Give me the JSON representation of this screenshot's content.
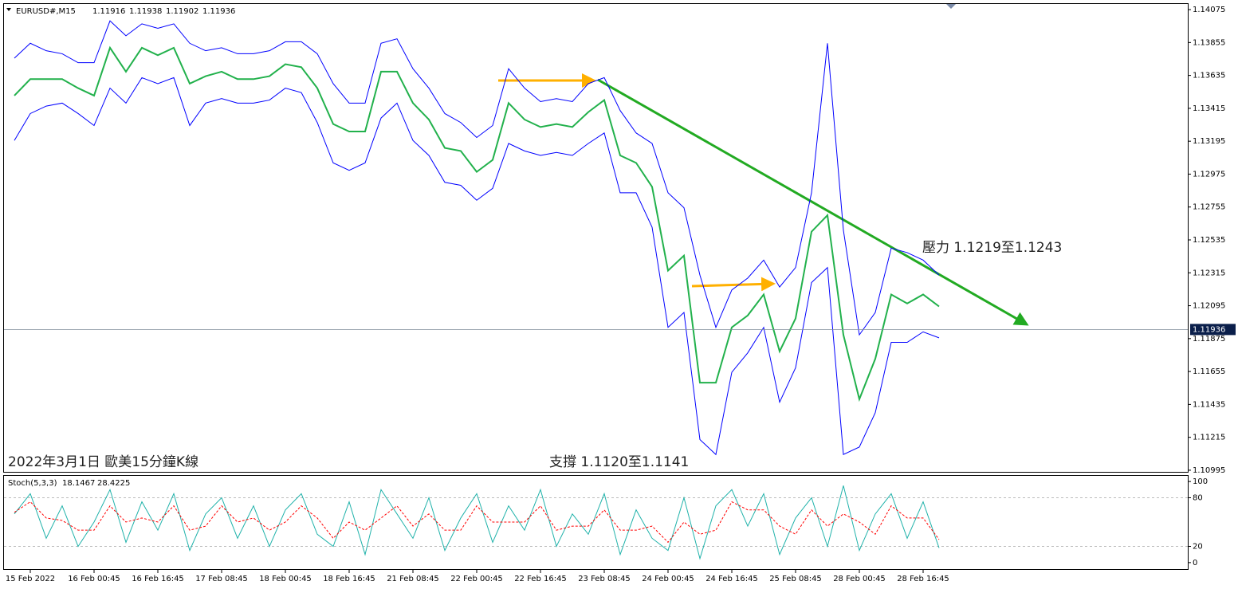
{
  "chart_data": [
    {
      "type": "line",
      "title": "EURUSD#,M15",
      "header_values": [
        1.11916,
        1.11938,
        1.11902,
        1.11936
      ],
      "ylim": [
        1.10984,
        1.14118
      ],
      "yticks": [
        1.14075,
        1.13855,
        1.13635,
        1.13415,
        1.13195,
        1.12975,
        1.12755,
        1.12535,
        1.12315,
        1.12095,
        1.11875,
        1.11655,
        1.11435,
        1.11215,
        1.10995
      ],
      "series": [
        {
          "color": "#22b14c",
          "values": [
            1.135,
            1.1361,
            1.1361,
            1.1361,
            1.1355,
            1.135,
            1.1382,
            1.1366,
            1.1382,
            1.1377,
            1.1382,
            1.1358,
            1.1363,
            1.1366,
            1.1361,
            1.1361,
            1.1363,
            1.1371,
            1.1369,
            1.1355,
            1.1331,
            1.1326,
            1.1326,
            1.1366,
            1.1366,
            1.1345,
            1.1334,
            1.1315,
            1.1313,
            1.1299,
            1.1307,
            1.1345,
            1.1334,
            1.1329,
            1.1331,
            1.1329,
            1.1339,
            1.1347,
            1.131,
            1.1305,
            1.1289,
            1.1233,
            1.1243,
            1.1158,
            1.1158,
            1.1195,
            1.1203,
            1.1217,
            1.1179,
            1.1201,
            1.1259,
            1.127,
            1.119,
            1.1147,
            1.1174,
            1.1217,
            1.1211,
            1.1217,
            1.1209
          ]
        },
        {
          "color": "#0000ff",
          "values": [
            1.1375,
            1.1385,
            1.138,
            1.1378,
            1.1372,
            1.1372,
            1.14,
            1.139,
            1.1398,
            1.1395,
            1.1398,
            1.1385,
            1.138,
            1.1382,
            1.1378,
            1.1378,
            1.138,
            1.1386,
            1.1386,
            1.1378,
            1.1358,
            1.1345,
            1.1345,
            1.1385,
            1.1388,
            1.1368,
            1.1355,
            1.1338,
            1.1332,
            1.1322,
            1.133,
            1.1368,
            1.1355,
            1.1346,
            1.1348,
            1.1346,
            1.1358,
            1.1362,
            1.134,
            1.1325,
            1.1318,
            1.1285,
            1.1275,
            1.123,
            1.1195,
            1.122,
            1.1228,
            1.124,
            1.1222,
            1.1235,
            1.1285,
            1.1385,
            1.126,
            1.119,
            1.1205,
            1.1248,
            1.1245,
            1.124,
            1.123
          ]
        },
        {
          "color": "#0000ff",
          "values": [
            1.132,
            1.1338,
            1.1343,
            1.1345,
            1.1338,
            1.133,
            1.1355,
            1.1345,
            1.1362,
            1.1358,
            1.1362,
            1.133,
            1.1345,
            1.1348,
            1.1345,
            1.1345,
            1.1347,
            1.1355,
            1.1352,
            1.1332,
            1.1305,
            1.13,
            1.1305,
            1.1335,
            1.1345,
            1.132,
            1.131,
            1.1292,
            1.129,
            1.128,
            1.1288,
            1.1318,
            1.1313,
            1.131,
            1.1312,
            1.131,
            1.1318,
            1.1325,
            1.1285,
            1.1285,
            1.1262,
            1.1195,
            1.1205,
            1.112,
            1.111,
            1.1165,
            1.1178,
            1.1195,
            1.1145,
            1.1168,
            1.1225,
            1.1235,
            1.111,
            1.1115,
            1.1138,
            1.1185,
            1.1185,
            1.1192,
            1.1188
          ]
        }
      ],
      "annotations": [
        "壓力 1.1219至1.1243",
        "支撐 1.1120至1.1141",
        "2022年3月1日 歐美15分鐘K線"
      ]
    },
    {
      "type": "line",
      "title": "Stoch(5,3,3)",
      "categories": [
        null,
        "15 Feb 2022",
        null,
        null,
        null,
        "16 Feb 00:45",
        null,
        null,
        null,
        "16 Feb 16:45",
        null,
        null,
        null,
        "17 Feb 08:45",
        null,
        null,
        null,
        "18 Feb 00:45",
        null,
        null,
        null,
        "18 Feb 16:45",
        null,
        null,
        null,
        "21 Feb 08:45",
        null,
        null,
        null,
        "22 Feb 00:45",
        null,
        null,
        null,
        "22 Feb 16:45",
        null,
        null,
        null,
        "23 Feb 08:45",
        null,
        null,
        null,
        "24 Feb 00:45",
        null,
        null,
        null,
        "24 Feb 16:45",
        null,
        null,
        null,
        "25 Feb 08:45",
        null,
        null,
        null,
        "28 Feb 00:45",
        null,
        null,
        null,
        "28 Feb 16:45",
        null
      ],
      "ylim": [
        -8,
        108
      ],
      "yticks": [
        100,
        80,
        20,
        0
      ],
      "series": [
        {
          "color": "#20b2aa",
          "values": [
            60,
            85,
            30,
            70,
            20,
            50,
            90,
            25,
            75,
            40,
            85,
            15,
            60,
            80,
            30,
            70,
            20,
            65,
            85,
            35,
            20,
            75,
            10,
            90,
            60,
            30,
            80,
            15,
            55,
            85,
            25,
            70,
            40,
            90,
            20,
            60,
            35,
            85,
            10,
            65,
            30,
            15,
            80,
            5,
            70,
            90,
            45,
            85,
            10,
            55,
            80,
            20,
            95,
            15,
            60,
            85,
            30,
            75,
            18.1467
          ]
        },
        {
          "color": "#ff0000",
          "values": [
            62,
            75,
            55,
            52,
            40,
            40,
            70,
            50,
            55,
            50,
            70,
            40,
            45,
            70,
            50,
            55,
            40,
            50,
            70,
            55,
            30,
            50,
            40,
            55,
            70,
            45,
            60,
            40,
            40,
            70,
            50,
            50,
            50,
            70,
            40,
            45,
            45,
            65,
            40,
            40,
            45,
            25,
            50,
            35,
            40,
            75,
            65,
            65,
            45,
            35,
            65,
            45,
            60,
            50,
            35,
            70,
            55,
            55,
            28.4225
          ]
        }
      ]
    }
  ]
}
